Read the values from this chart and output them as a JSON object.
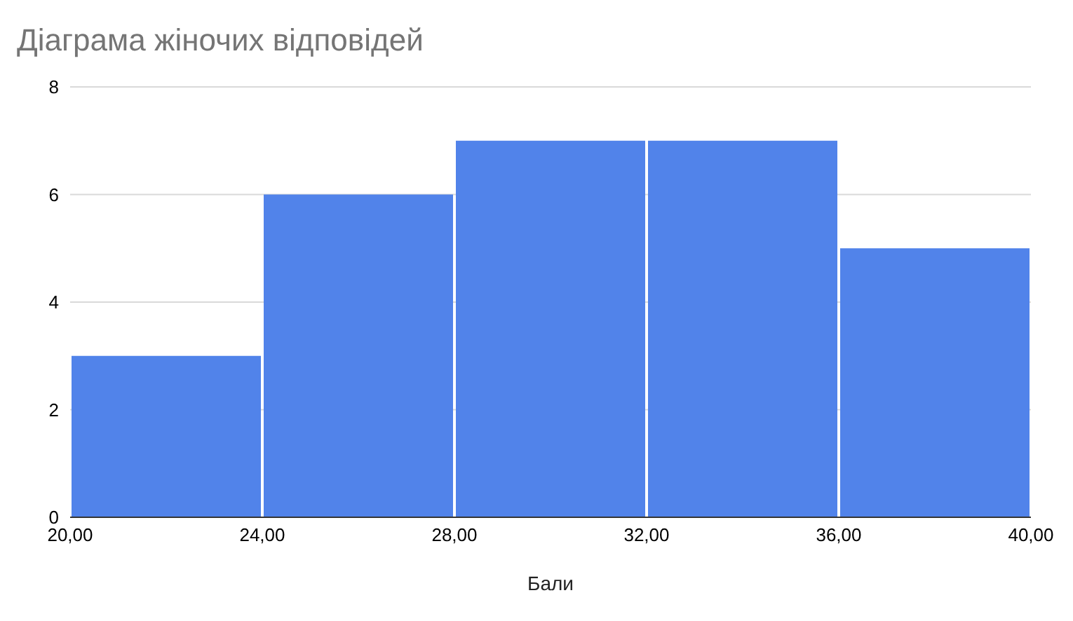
{
  "chart_data": {
    "type": "histogram",
    "title": "Діаграма жіночих відповідей",
    "xlabel": "Бали",
    "bins": [
      20,
      24,
      28,
      32,
      36,
      40
    ],
    "values": [
      3,
      6,
      7,
      7,
      5
    ],
    "color": "#5183ea",
    "xlim": [
      20,
      40
    ],
    "xticks": [
      {
        "value": 20,
        "label": "20,00"
      },
      {
        "value": 24,
        "label": "24,00"
      },
      {
        "value": 28,
        "label": "28,00"
      },
      {
        "value": 32,
        "label": "32,00"
      },
      {
        "value": 36,
        "label": "36,00"
      },
      {
        "value": 40,
        "label": "40,00"
      }
    ],
    "ylim": [
      0,
      8
    ],
    "yticks": [
      0,
      2,
      4,
      6,
      8
    ],
    "grid": "y"
  }
}
